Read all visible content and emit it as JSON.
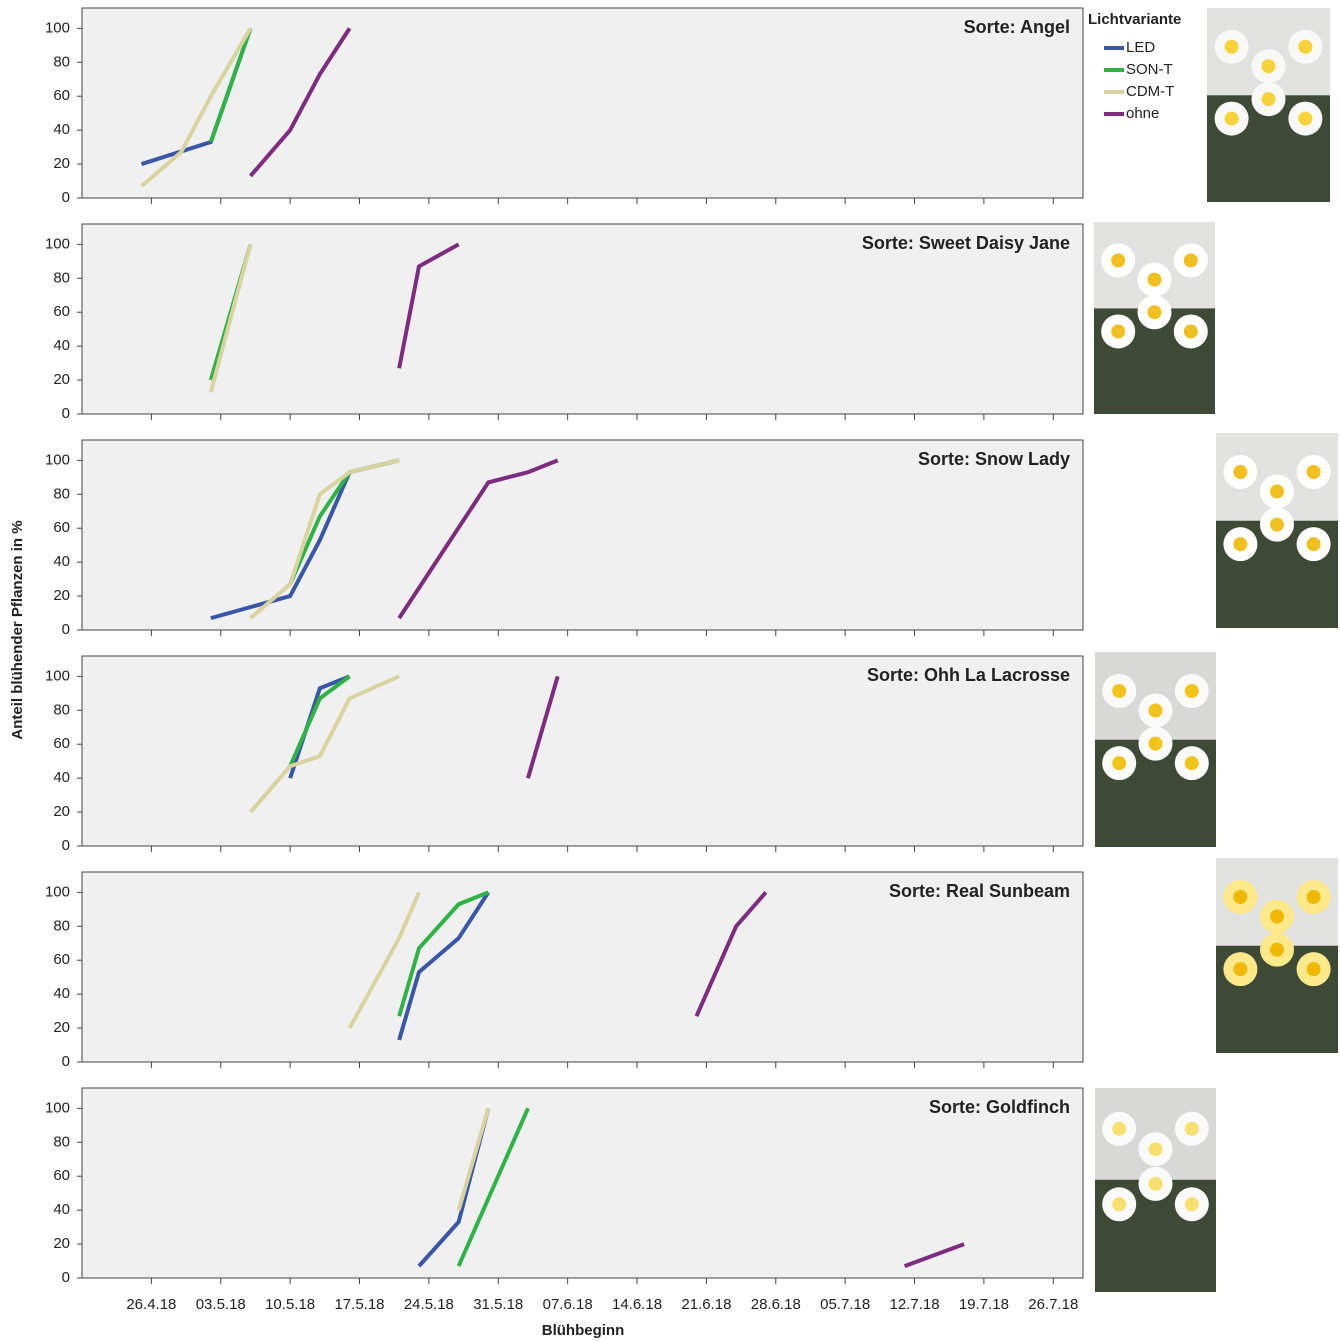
{
  "xlabel": "Blühbeginn",
  "ylabel": "Anteil blühender Pflanzen in %",
  "legend_title": "Lichtvariante",
  "chart_data": [
    {
      "type": "line",
      "title": "Sorte: Angel",
      "xlim": [
        "19.4.18",
        "29.7.18"
      ],
      "ylim": [
        0,
        112
      ],
      "yticks": [
        0,
        20,
        40,
        60,
        80,
        100
      ],
      "xticks": [
        "26.4.18",
        "03.5.18",
        "10.5.18",
        "17.5.18",
        "24.5.18",
        "31.5.18",
        "07.6.18",
        "14.6.18",
        "21.6.18",
        "28.6.18",
        "05.7.18",
        "12.7.18",
        "19.7.18",
        "26.7.18"
      ],
      "series": [
        {
          "name": "LED",
          "color": "#3a56a8",
          "x": [
            "25.4.18",
            "2.5.18",
            "6.5.18"
          ],
          "values": [
            20,
            33,
            100
          ]
        },
        {
          "name": "SON-T",
          "color": "#2eb345",
          "x": [
            "2.5.18",
            "6.5.18"
          ],
          "values": [
            33,
            100
          ]
        },
        {
          "name": "CDM-T",
          "color": "#d9d3a0",
          "x": [
            "25.4.18",
            "29.4.18",
            "2.5.18",
            "6.5.18"
          ],
          "values": [
            7,
            27,
            60,
            100
          ]
        },
        {
          "name": "ohne",
          "color": "#7e2b80",
          "x": [
            "6.5.18",
            "10.5.18",
            "13.5.18",
            "16.5.18"
          ],
          "values": [
            13,
            40,
            73,
            100
          ]
        }
      ]
    },
    {
      "type": "line",
      "title": "Sorte: Sweet Daisy Jane",
      "xlim": [
        "19.4.18",
        "29.7.18"
      ],
      "ylim": [
        0,
        112
      ],
      "yticks": [
        0,
        20,
        40,
        60,
        80,
        100
      ],
      "xticks": [
        "26.4.18",
        "03.5.18",
        "10.5.18",
        "17.5.18",
        "24.5.18",
        "31.5.18",
        "07.6.18",
        "14.6.18",
        "21.6.18",
        "28.6.18",
        "05.7.18",
        "12.7.18",
        "19.7.18",
        "26.7.18"
      ],
      "series": [
        {
          "name": "SON-T",
          "color": "#2eb345",
          "x": [
            "2.5.18",
            "6.5.18"
          ],
          "values": [
            20,
            100
          ]
        },
        {
          "name": "CDM-T",
          "color": "#d9d3a0",
          "x": [
            "2.5.18",
            "6.5.18"
          ],
          "values": [
            13,
            100
          ]
        },
        {
          "name": "ohne",
          "color": "#7e2b80",
          "x": [
            "21.5.18",
            "23.5.18",
            "27.5.18"
          ],
          "values": [
            27,
            87,
            100
          ]
        }
      ]
    },
    {
      "type": "line",
      "title": "Sorte: Snow Lady",
      "xlim": [
        "19.4.18",
        "29.7.18"
      ],
      "ylim": [
        0,
        112
      ],
      "yticks": [
        0,
        20,
        40,
        60,
        80,
        100
      ],
      "xticks": [
        "26.4.18",
        "03.5.18",
        "10.5.18",
        "17.5.18",
        "24.5.18",
        "31.5.18",
        "07.6.18",
        "14.6.18",
        "21.6.18",
        "28.6.18",
        "05.7.18",
        "12.7.18",
        "19.7.18",
        "26.7.18"
      ],
      "series": [
        {
          "name": "LED",
          "color": "#3a56a8",
          "x": [
            "2.5.18",
            "10.5.18",
            "13.5.18",
            "16.5.18",
            "21.5.18"
          ],
          "values": [
            7,
            20,
            53,
            93,
            100
          ]
        },
        {
          "name": "SON-T",
          "color": "#2eb345",
          "x": [
            "10.5.18",
            "13.5.18",
            "16.5.18",
            "21.5.18"
          ],
          "values": [
            27,
            67,
            93,
            100
          ]
        },
        {
          "name": "CDM-T",
          "color": "#d9d3a0",
          "x": [
            "6.5.18",
            "10.5.18",
            "13.5.18",
            "16.5.18",
            "21.5.18"
          ],
          "values": [
            7,
            27,
            80,
            93,
            100
          ]
        },
        {
          "name": "ohne",
          "color": "#7e2b80",
          "x": [
            "21.5.18",
            "30.5.18",
            "3.6.18",
            "6.6.18"
          ],
          "values": [
            7,
            87,
            93,
            100
          ]
        }
      ]
    },
    {
      "type": "line",
      "title": "Sorte: Ohh La Lacrosse",
      "xlim": [
        "19.4.18",
        "29.7.18"
      ],
      "ylim": [
        0,
        112
      ],
      "yticks": [
        0,
        20,
        40,
        60,
        80,
        100
      ],
      "xticks": [
        "26.4.18",
        "03.5.18",
        "10.5.18",
        "17.5.18",
        "24.5.18",
        "31.5.18",
        "07.6.18",
        "14.6.18",
        "21.6.18",
        "28.6.18",
        "05.7.18",
        "12.7.18",
        "19.7.18",
        "26.7.18"
      ],
      "series": [
        {
          "name": "LED",
          "color": "#3a56a8",
          "x": [
            "10.5.18",
            "13.5.18",
            "16.5.18"
          ],
          "values": [
            40,
            93,
            100
          ]
        },
        {
          "name": "SON-T",
          "color": "#2eb345",
          "x": [
            "10.5.18",
            "13.5.18",
            "16.5.18"
          ],
          "values": [
            47,
            87,
            100
          ]
        },
        {
          "name": "CDM-T",
          "color": "#d9d3a0",
          "x": [
            "6.5.18",
            "10.5.18",
            "13.5.18",
            "16.5.18",
            "21.5.18"
          ],
          "values": [
            20,
            47,
            53,
            87,
            100
          ]
        },
        {
          "name": "ohne",
          "color": "#7e2b80",
          "x": [
            "3.6.18",
            "6.6.18"
          ],
          "values": [
            40,
            100
          ]
        }
      ]
    },
    {
      "type": "line",
      "title": "Sorte: Real Sunbeam",
      "xlim": [
        "19.4.18",
        "29.7.18"
      ],
      "ylim": [
        0,
        112
      ],
      "yticks": [
        0,
        20,
        40,
        60,
        80,
        100
      ],
      "xticks": [
        "26.4.18",
        "03.5.18",
        "10.5.18",
        "17.5.18",
        "24.5.18",
        "31.5.18",
        "07.6.18",
        "14.6.18",
        "21.6.18",
        "28.6.18",
        "05.7.18",
        "12.7.18",
        "19.7.18",
        "26.7.18"
      ],
      "series": [
        {
          "name": "LED",
          "color": "#3a56a8",
          "x": [
            "21.5.18",
            "23.5.18",
            "27.5.18",
            "30.5.18"
          ],
          "values": [
            13,
            53,
            73,
            100
          ]
        },
        {
          "name": "SON-T",
          "color": "#2eb345",
          "x": [
            "21.5.18",
            "23.5.18",
            "27.5.18",
            "30.5.18"
          ],
          "values": [
            27,
            67,
            93,
            100
          ]
        },
        {
          "name": "CDM-T",
          "color": "#d9d3a0",
          "x": [
            "16.5.18",
            "21.5.18",
            "23.5.18"
          ],
          "values": [
            20,
            73,
            100
          ]
        },
        {
          "name": "ohne",
          "color": "#7e2b80",
          "x": [
            "20.6.18",
            "24.6.18",
            "27.6.18"
          ],
          "values": [
            27,
            80,
            100
          ]
        }
      ]
    },
    {
      "type": "line",
      "title": "Sorte: Goldfinch",
      "xlim": [
        "19.4.18",
        "29.7.18"
      ],
      "ylim": [
        0,
        112
      ],
      "yticks": [
        0,
        20,
        40,
        60,
        80,
        100
      ],
      "xticks": [
        "26.4.18",
        "03.5.18",
        "10.5.18",
        "17.5.18",
        "24.5.18",
        "31.5.18",
        "07.6.18",
        "14.6.18",
        "21.6.18",
        "28.6.18",
        "05.7.18",
        "12.7.18",
        "19.7.18",
        "26.7.18"
      ],
      "series": [
        {
          "name": "LED",
          "color": "#3a56a8",
          "x": [
            "23.5.18",
            "27.5.18",
            "30.5.18"
          ],
          "values": [
            7,
            33,
            100
          ]
        },
        {
          "name": "SON-T",
          "color": "#2eb345",
          "x": [
            "27.5.18",
            "3.6.18"
          ],
          "values": [
            7,
            100
          ]
        },
        {
          "name": "CDM-T",
          "color": "#d9d3a0",
          "x": [
            "27.5.18",
            "30.5.18"
          ],
          "values": [
            40,
            100
          ]
        },
        {
          "name": "ohne",
          "color": "#7e2b80",
          "x": [
            "11.7.18",
            "17.7.18"
          ],
          "values": [
            7,
            20
          ]
        }
      ]
    }
  ]
}
